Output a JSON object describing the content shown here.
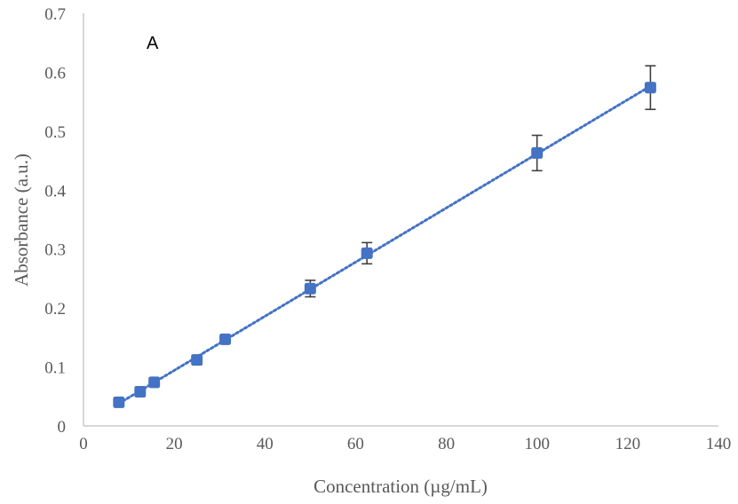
{
  "panel_label": "A",
  "chart_data": {
    "type": "scatter",
    "title": "",
    "xlabel": "Concentration (µg/mL)",
    "ylabel": "Absorbance (a.u.)",
    "xlim": [
      0,
      140
    ],
    "ylim": [
      0,
      0.7
    ],
    "xticks": [
      "0",
      "20",
      "40",
      "60",
      "80",
      "100",
      "120",
      "140"
    ],
    "yticks": [
      "0",
      "0.1",
      "0.2",
      "0.3",
      "0.4",
      "0.5",
      "0.6",
      "0.7"
    ],
    "grid": false,
    "trendline": "linear, dotted",
    "x": [
      7.8,
      12.5,
      15.6,
      25,
      31.25,
      50,
      62.5,
      100,
      125
    ],
    "y": [
      0.04,
      0.058,
      0.074,
      0.112,
      0.147,
      0.233,
      0.293,
      0.463,
      0.574
    ],
    "error": [
      0.004,
      0.008,
      0.005,
      0.008,
      0.004,
      0.014,
      0.018,
      0.03,
      0.037
    ],
    "marker_color": "#4472C4",
    "error_color": "#404040",
    "axis_color": "#BFBFBF"
  }
}
